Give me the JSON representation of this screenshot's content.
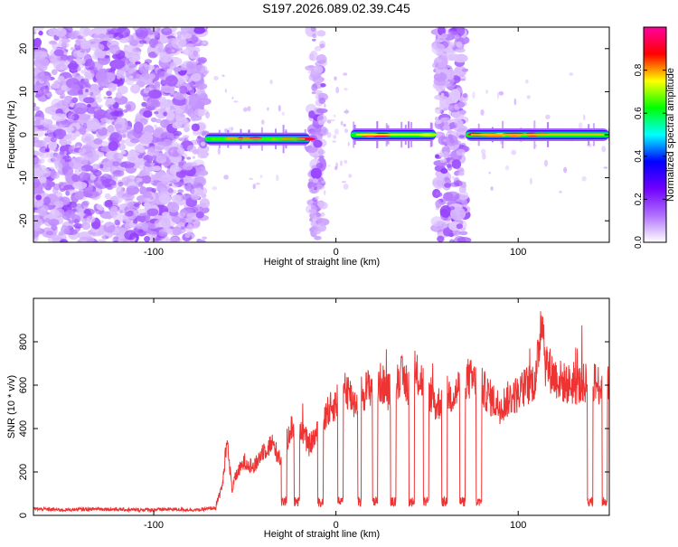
{
  "title": "S197.2026.089.02.39.C45",
  "chart_data": [
    {
      "type": "heatmap",
      "title": "S197.2026.089.02.39.C45",
      "xlabel": "Height of straight line (km)",
      "ylabel": "Frequency (Hz)",
      "xlim": [
        -166,
        150
      ],
      "ylim": [
        -25,
        25
      ],
      "xticks": [
        -100,
        0,
        100
      ],
      "yticks": [
        -20,
        -10,
        0,
        10,
        20
      ],
      "colorbar": {
        "label": "Normalized spectral amplitude",
        "lim": [
          0,
          1
        ],
        "ticks": [
          0,
          0.2,
          0.4,
          0.6,
          0.8
        ],
        "colors": [
          "#ffffff",
          "#b070ff",
          "#7000ff",
          "#0000ff",
          "#00ffff",
          "#00ff00",
          "#ffff00",
          "#ff0000",
          "#ff00a0"
        ]
      },
      "noise_bands": [
        {
          "x_start": -166,
          "x_end": -72,
          "f_min": -25,
          "f_max": 25
        },
        {
          "x_start": -14,
          "x_end": -7,
          "f_min": -25,
          "f_max": 25
        },
        {
          "x_start": 55,
          "x_end": 71,
          "f_min": -25,
          "f_max": 25
        },
        {
          "x_start": 56,
          "x_end": 60,
          "f_min": 5,
          "f_max": 25
        }
      ],
      "signal_segments": [
        {
          "x_start": -72,
          "x_end": -14,
          "freq": -1.0,
          "peak": 0.85
        },
        {
          "x_start": 8,
          "x_end": 55,
          "freq": 0.0,
          "peak": 0.95
        },
        {
          "x_start": 71,
          "x_end": 150,
          "freq": 0.0,
          "peak": 1.0
        }
      ]
    },
    {
      "type": "line",
      "xlabel": "Height of straight line (km)",
      "ylabel": "SNR (10 * v/v)",
      "xlim": [
        -166,
        150
      ],
      "ylim": [
        0,
        1000
      ],
      "xticks": [
        -100,
        0,
        100
      ],
      "yticks": [
        0,
        200,
        400,
        600,
        800
      ],
      "series": [
        {
          "name": "SNR",
          "color": "#ee3333",
          "x": [
            -166,
            -150,
            -130,
            -110,
            -90,
            -75,
            -66,
            -62,
            -60,
            -57,
            -55,
            -50,
            -45,
            -40,
            -35,
            -30,
            -25,
            -20,
            -15,
            -10,
            -5,
            0,
            5,
            10,
            15,
            20,
            25,
            30,
            35,
            40,
            45,
            50,
            55,
            60,
            65,
            70,
            75,
            80,
            85,
            90,
            95,
            100,
            105,
            110,
            113,
            115,
            120,
            125,
            130,
            135,
            140,
            145,
            150
          ],
          "values": [
            30,
            25,
            30,
            25,
            28,
            25,
            35,
            150,
            350,
            120,
            180,
            250,
            220,
            300,
            330,
            250,
            400,
            430,
            320,
            380,
            470,
            520,
            600,
            520,
            570,
            600,
            610,
            560,
            650,
            590,
            640,
            600,
            500,
            560,
            550,
            640,
            620,
            590,
            540,
            500,
            540,
            560,
            600,
            630,
            960,
            700,
            640,
            610,
            600,
            600,
            620,
            600,
            600
          ]
        }
      ],
      "dropouts": [
        [
          -30,
          -27
        ],
        [
          -23,
          -20
        ],
        [
          -10,
          -7
        ],
        [
          1,
          4
        ],
        [
          12,
          14
        ],
        [
          20,
          23
        ],
        [
          30,
          33
        ],
        [
          40,
          43
        ],
        [
          48,
          51
        ],
        [
          58,
          61
        ],
        [
          68,
          71
        ],
        [
          77,
          80
        ],
        [
          138,
          141
        ],
        [
          146,
          149
        ]
      ]
    }
  ]
}
